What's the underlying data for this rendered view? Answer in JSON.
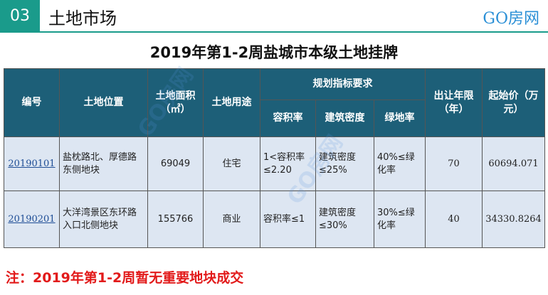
{
  "header": {
    "section_number": "03",
    "section_title": "土地市场",
    "brand": "GO房网"
  },
  "page_title": "2019年第1-2周盐城市本级土地挂牌",
  "table": {
    "headers": {
      "code": "编号",
      "location": "土地位置",
      "area": "土地面积（㎡）",
      "usage": "土地用途",
      "planning": "规划指标要求",
      "plot_ratio": "容积率",
      "density": "建筑密度",
      "green_rate": "绿地率",
      "term": "出让年限（年）",
      "price": "起始价（万元）"
    },
    "rows": [
      {
        "code": "20190101",
        "location": "盐枕路北、厚德路东侧地块",
        "area": "69049",
        "usage": "住宅",
        "plot_ratio": "1<容积率≤2.20",
        "density": "建筑密度≤25%",
        "green_rate": "40%≤绿化率",
        "term": "70",
        "price": "60694.071"
      },
      {
        "code": "20190201",
        "location": "大洋湾景区东环路入口北侧地块",
        "area": "155766",
        "usage": "商业",
        "plot_ratio": "容积率≤1",
        "density": "建筑密度≤30%",
        "green_rate": "30%≤绿化率",
        "term": "40",
        "price": "34330.8264"
      }
    ]
  },
  "watermark": "GO房网",
  "footnote": "注：2019年第1-2周暂无重要地块成交",
  "colors": {
    "accent": "#1a9b8b",
    "header_bg": "#1d5f78",
    "row_bg": "#dde6f2",
    "brand": "#2a8fd6",
    "footnote": "#e21a1a"
  }
}
